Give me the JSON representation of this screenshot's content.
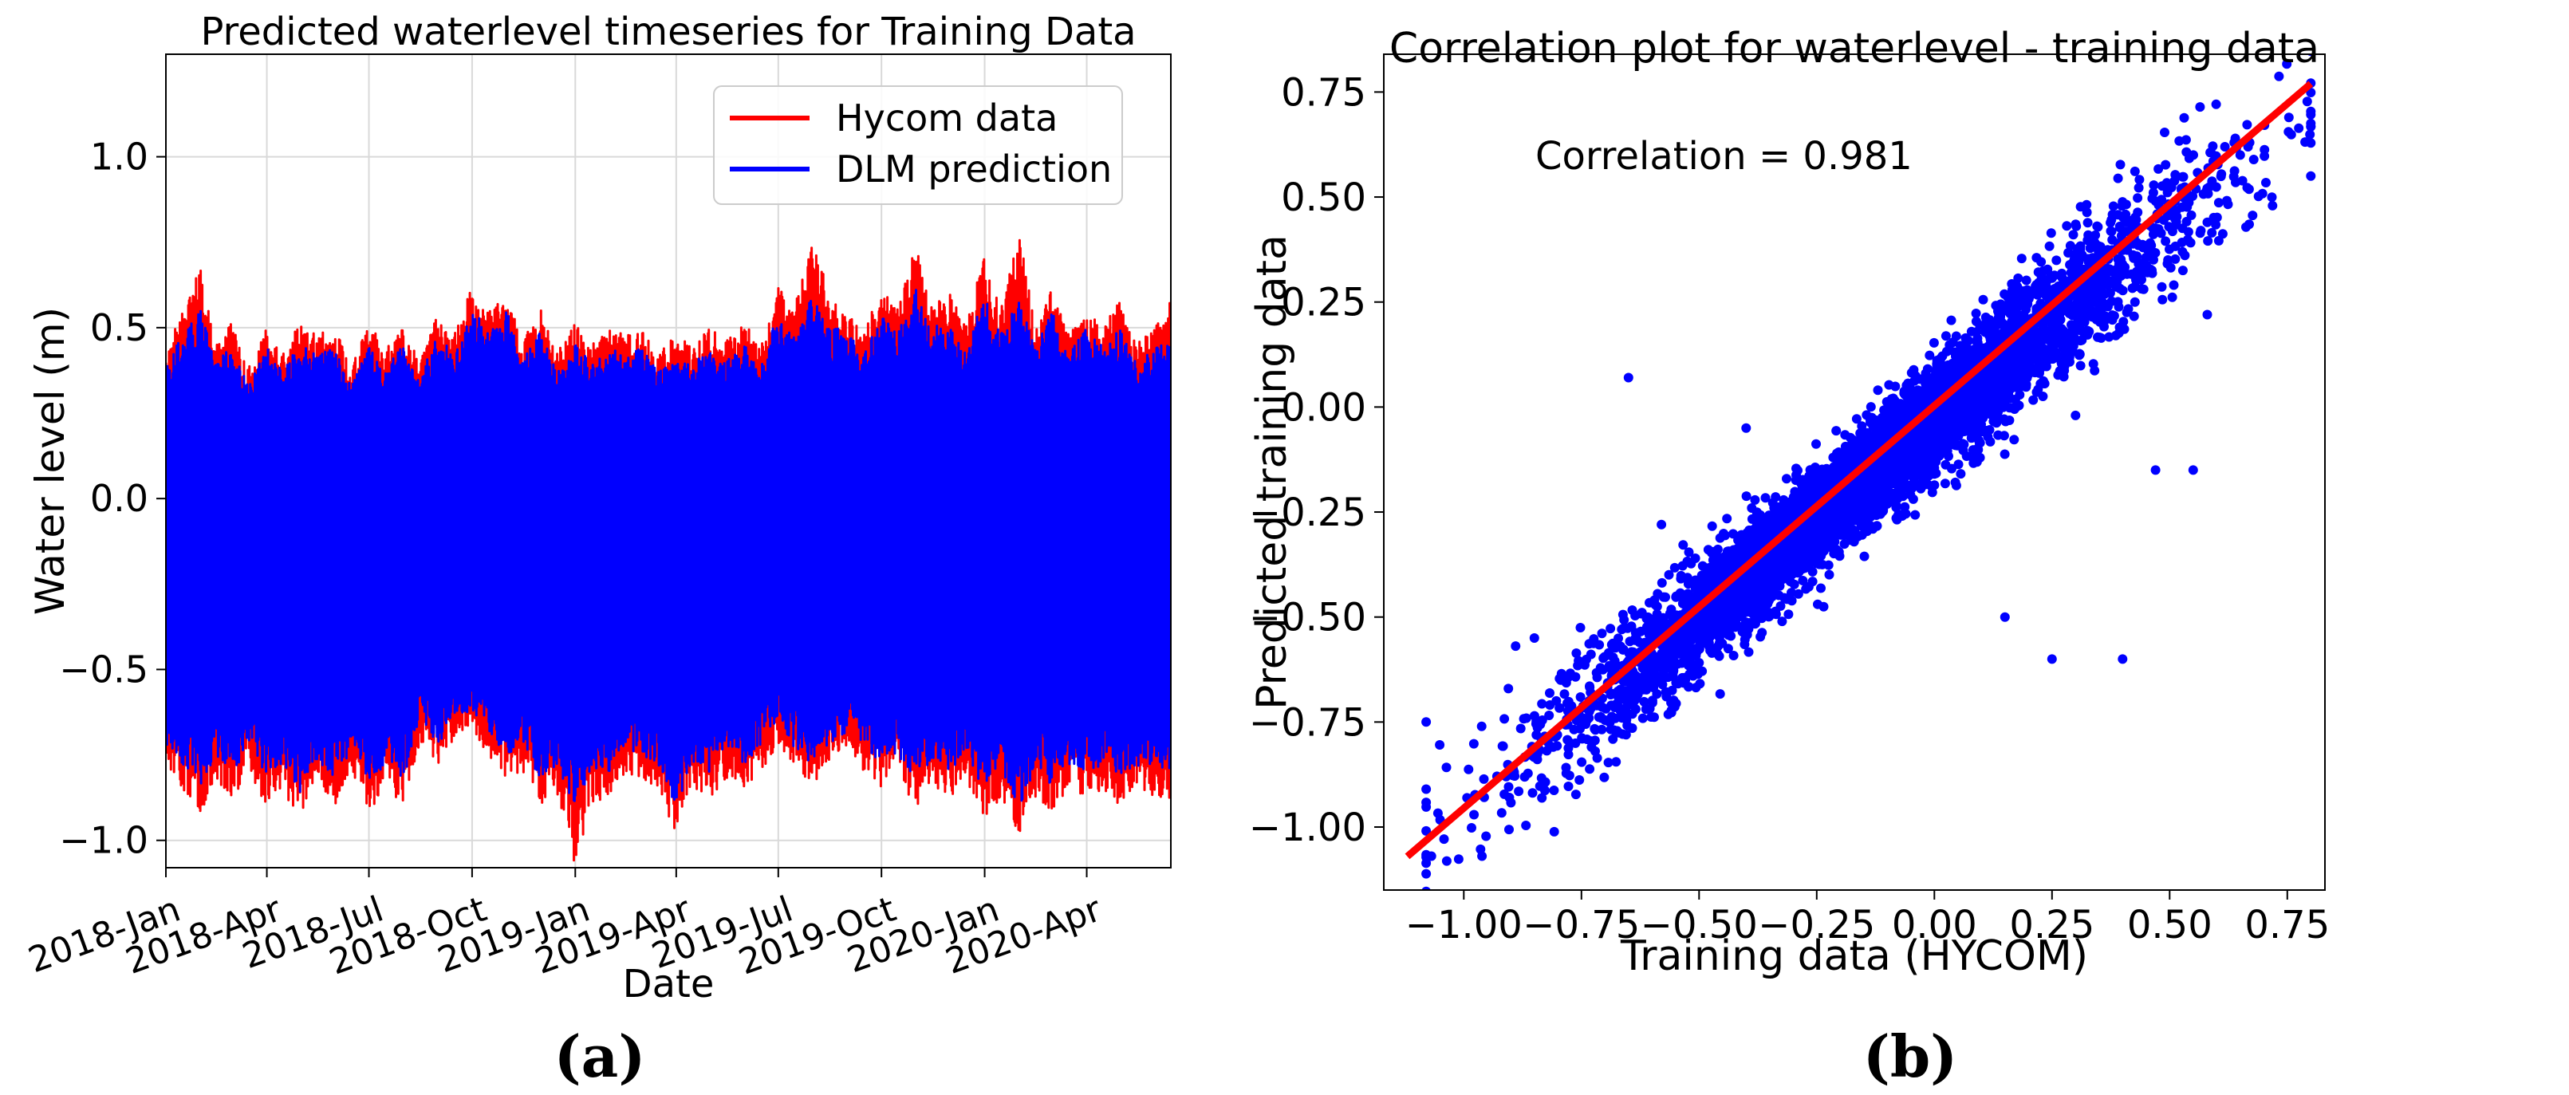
{
  "chart_data": [
    {
      "type": "line",
      "title": "Predicted waterlevel timeseries for Training Data",
      "xlabel": "Date",
      "ylabel": "Water level (m)",
      "x_range": [
        "2018-01-01",
        "2020-06-15"
      ],
      "ylim": [
        -1.08,
        1.3
      ],
      "x_ticks": [
        "2018-Jan",
        "2018-Apr",
        "2018-Jul",
        "2018-Oct",
        "2019-Jan",
        "2019-Apr",
        "2019-Jul",
        "2019-Oct",
        "2020-Jan",
        "2020-Apr"
      ],
      "x_tick_dates": [
        "2018-01-01",
        "2018-04-01",
        "2018-07-01",
        "2018-10-01",
        "2019-01-01",
        "2019-04-01",
        "2019-07-01",
        "2019-10-01",
        "2020-01-01",
        "2020-04-01"
      ],
      "y_ticks": [
        1.0,
        0.5,
        0.0,
        -0.5,
        -1.0
      ],
      "y_tick_labels": [
        "1.0",
        "0.5",
        "0.0",
        "−0.5",
        "−1.0"
      ],
      "grid": true,
      "legend_position": "top-right",
      "panel_label": "(a)",
      "series": [
        {
          "name": "Hycom data",
          "color": "#ff0000",
          "upper_envelope": {
            "x": [
              "2018-01-01",
              "2018-01-15",
              "2018-02-01",
              "2018-02-15",
              "2018-03-01",
              "2018-03-15",
              "2018-04-01",
              "2018-04-15",
              "2018-05-01",
              "2018-05-15",
              "2018-06-01",
              "2018-06-15",
              "2018-07-01",
              "2018-07-15",
              "2018-08-01",
              "2018-08-15",
              "2018-09-01",
              "2018-09-15",
              "2018-10-01",
              "2018-10-15",
              "2018-11-01",
              "2018-11-15",
              "2018-12-01",
              "2018-12-15",
              "2019-01-01",
              "2019-01-15",
              "2019-02-01",
              "2019-02-15",
              "2019-03-01",
              "2019-03-15",
              "2019-04-01",
              "2019-04-15",
              "2019-05-01",
              "2019-05-15",
              "2019-06-01",
              "2019-06-15",
              "2019-07-01",
              "2019-07-15",
              "2019-08-01",
              "2019-08-15",
              "2019-09-01",
              "2019-09-15",
              "2019-10-01",
              "2019-10-15",
              "2019-11-01",
              "2019-11-15",
              "2019-12-01",
              "2019-12-15",
              "2020-01-01",
              "2020-01-15",
              "2020-02-01",
              "2020-02-15",
              "2020-03-01",
              "2020-03-15",
              "2020-04-01",
              "2020-04-15",
              "2020-05-01",
              "2020-05-15",
              "2020-06-01",
              "2020-06-15"
            ],
            "y": [
              0.42,
              0.55,
              0.68,
              0.45,
              0.52,
              0.38,
              0.5,
              0.42,
              0.52,
              0.48,
              0.5,
              0.38,
              0.52,
              0.44,
              0.5,
              0.4,
              0.55,
              0.48,
              0.62,
              0.55,
              0.6,
              0.45,
              0.58,
              0.42,
              0.52,
              0.45,
              0.5,
              0.48,
              0.5,
              0.42,
              0.48,
              0.45,
              0.5,
              0.46,
              0.52,
              0.44,
              0.62,
              0.55,
              0.8,
              0.58,
              0.55,
              0.48,
              0.62,
              0.55,
              0.75,
              0.58,
              0.6,
              0.5,
              0.72,
              0.55,
              0.78,
              0.5,
              0.62,
              0.48,
              0.55,
              0.5,
              0.58,
              0.45,
              0.5,
              0.6
            ]
          },
          "lower_envelope": {
            "x": [
              "2018-01-01",
              "2018-01-15",
              "2018-02-01",
              "2018-02-15",
              "2018-03-01",
              "2018-03-15",
              "2018-04-01",
              "2018-04-15",
              "2018-05-01",
              "2018-05-15",
              "2018-06-01",
              "2018-06-15",
              "2018-07-01",
              "2018-07-15",
              "2018-08-01",
              "2018-08-15",
              "2018-09-01",
              "2018-09-15",
              "2018-10-01",
              "2018-10-15",
              "2018-11-01",
              "2018-11-15",
              "2018-12-01",
              "2018-12-15",
              "2019-01-01",
              "2019-01-15",
              "2019-02-01",
              "2019-02-15",
              "2019-03-01",
              "2019-03-15",
              "2019-04-01",
              "2019-04-15",
              "2019-05-01",
              "2019-05-15",
              "2019-06-01",
              "2019-06-15",
              "2019-07-01",
              "2019-07-15",
              "2019-08-01",
              "2019-08-15",
              "2019-09-01",
              "2019-09-15",
              "2019-10-01",
              "2019-10-15",
              "2019-11-01",
              "2019-11-15",
              "2019-12-01",
              "2019-12-15",
              "2020-01-01",
              "2020-01-15",
              "2020-02-01",
              "2020-02-15",
              "2020-03-01",
              "2020-03-15",
              "2020-04-01",
              "2020-04-15",
              "2020-05-01",
              "2020-05-15",
              "2020-06-01",
              "2020-06-15"
            ],
            "y": [
              -0.78,
              -0.85,
              -0.93,
              -0.82,
              -0.88,
              -0.8,
              -0.9,
              -0.85,
              -0.95,
              -0.82,
              -0.9,
              -0.8,
              -0.92,
              -0.85,
              -0.9,
              -0.72,
              -0.78,
              -0.7,
              -0.68,
              -0.75,
              -0.82,
              -0.8,
              -0.9,
              -0.85,
              -1.08,
              -0.9,
              -0.88,
              -0.8,
              -0.82,
              -0.85,
              -0.98,
              -0.85,
              -0.88,
              -0.82,
              -0.85,
              -0.8,
              -0.72,
              -0.8,
              -0.85,
              -0.78,
              -0.75,
              -0.8,
              -0.85,
              -0.82,
              -0.9,
              -0.85,
              -0.88,
              -0.82,
              -0.95,
              -0.88,
              -0.98,
              -0.88,
              -0.92,
              -0.85,
              -0.88,
              -0.85,
              -0.9,
              -0.85,
              -0.88,
              -0.88
            ]
          }
        },
        {
          "name": "DLM prediction",
          "color": "#0000ff",
          "upper_envelope": {
            "x": [
              "2018-01-01",
              "2018-01-15",
              "2018-02-01",
              "2018-02-15",
              "2018-03-01",
              "2018-03-15",
              "2018-04-01",
              "2018-04-15",
              "2018-05-01",
              "2018-05-15",
              "2018-06-01",
              "2018-06-15",
              "2018-07-01",
              "2018-07-15",
              "2018-08-01",
              "2018-08-15",
              "2018-09-01",
              "2018-09-15",
              "2018-10-01",
              "2018-10-15",
              "2018-11-01",
              "2018-11-15",
              "2018-12-01",
              "2018-12-15",
              "2019-01-01",
              "2019-01-15",
              "2019-02-01",
              "2019-02-15",
              "2019-03-01",
              "2019-03-15",
              "2019-04-01",
              "2019-04-15",
              "2019-05-01",
              "2019-05-15",
              "2019-06-01",
              "2019-06-15",
              "2019-07-01",
              "2019-07-15",
              "2019-08-01",
              "2019-08-15",
              "2019-09-01",
              "2019-09-15",
              "2019-10-01",
              "2019-10-15",
              "2019-11-01",
              "2019-11-15",
              "2019-12-01",
              "2019-12-15",
              "2020-01-01",
              "2020-01-15",
              "2020-02-01",
              "2020-02-15",
              "2020-03-01",
              "2020-03-15",
              "2020-04-01",
              "2020-04-15",
              "2020-05-01",
              "2020-05-15",
              "2020-06-01",
              "2020-06-15"
            ],
            "y": [
              0.38,
              0.48,
              0.55,
              0.4,
              0.45,
              0.33,
              0.44,
              0.38,
              0.45,
              0.42,
              0.44,
              0.33,
              0.45,
              0.38,
              0.45,
              0.36,
              0.48,
              0.42,
              0.55,
              0.5,
              0.55,
              0.4,
              0.5,
              0.37,
              0.45,
              0.4,
              0.44,
              0.42,
              0.45,
              0.37,
              0.42,
              0.4,
              0.44,
              0.4,
              0.46,
              0.38,
              0.55,
              0.48,
              0.6,
              0.5,
              0.5,
              0.42,
              0.55,
              0.48,
              0.62,
              0.5,
              0.52,
              0.44,
              0.6,
              0.48,
              0.58,
              0.44,
              0.55,
              0.42,
              0.5,
              0.45,
              0.5,
              0.4,
              0.44,
              0.48
            ]
          },
          "lower_envelope": {
            "x": [
              "2018-01-01",
              "2018-01-15",
              "2018-02-01",
              "2018-02-15",
              "2018-03-01",
              "2018-03-15",
              "2018-04-01",
              "2018-04-15",
              "2018-05-01",
              "2018-05-15",
              "2018-06-01",
              "2018-06-15",
              "2018-07-01",
              "2018-07-15",
              "2018-08-01",
              "2018-08-15",
              "2018-09-01",
              "2018-09-15",
              "2018-10-01",
              "2018-10-15",
              "2018-11-01",
              "2018-11-15",
              "2018-12-01",
              "2018-12-15",
              "2019-01-01",
              "2019-01-15",
              "2019-02-01",
              "2019-02-15",
              "2019-03-01",
              "2019-03-15",
              "2019-04-01",
              "2019-04-15",
              "2019-05-01",
              "2019-05-15",
              "2019-06-01",
              "2019-06-15",
              "2019-07-01",
              "2019-07-15",
              "2019-08-01",
              "2019-08-15",
              "2019-09-01",
              "2019-09-15",
              "2019-10-01",
              "2019-10-15",
              "2019-11-01",
              "2019-11-15",
              "2019-12-01",
              "2019-12-15",
              "2020-01-01",
              "2020-01-15",
              "2020-02-01",
              "2020-02-15",
              "2020-03-01",
              "2020-03-15",
              "2020-04-01",
              "2020-04-15",
              "2020-05-01",
              "2020-05-15",
              "2020-06-01",
              "2020-06-15"
            ],
            "y": [
              -0.72,
              -0.78,
              -0.85,
              -0.75,
              -0.8,
              -0.74,
              -0.82,
              -0.78,
              -0.86,
              -0.76,
              -0.82,
              -0.74,
              -0.84,
              -0.78,
              -0.82,
              -0.66,
              -0.72,
              -0.64,
              -0.62,
              -0.68,
              -0.75,
              -0.73,
              -0.82,
              -0.78,
              -0.9,
              -0.82,
              -0.8,
              -0.73,
              -0.75,
              -0.78,
              -0.9,
              -0.78,
              -0.8,
              -0.75,
              -0.78,
              -0.73,
              -0.66,
              -0.73,
              -0.78,
              -0.72,
              -0.68,
              -0.73,
              -0.78,
              -0.75,
              -0.82,
              -0.78,
              -0.8,
              -0.75,
              -0.86,
              -0.8,
              -0.9,
              -0.8,
              -0.84,
              -0.78,
              -0.8,
              -0.78,
              -0.82,
              -0.78,
              -0.8,
              -0.8
            ]
          }
        }
      ]
    },
    {
      "type": "scatter",
      "title": "Correlation plot for waterlevel - training data",
      "xlabel": "Training data (HYCOM)",
      "ylabel": "Predicted training data",
      "xlim": [
        -1.17,
        0.83
      ],
      "ylim": [
        -1.15,
        0.84
      ],
      "x_ticks": [
        -1.0,
        -0.75,
        -0.5,
        -0.25,
        0.0,
        0.25,
        0.5,
        0.75
      ],
      "x_tick_labels": [
        "−1.00",
        "−0.75",
        "−0.50",
        "−0.25",
        "0.00",
        "0.25",
        "0.50",
        "0.75"
      ],
      "y_ticks": [
        0.75,
        0.5,
        0.25,
        0.0,
        -0.25,
        -0.5,
        -0.75,
        -1.0
      ],
      "y_tick_labels": [
        "0.75",
        "0.50",
        "0.25",
        "0.00",
        "−0.25",
        "−0.50",
        "−0.75",
        "−1.00"
      ],
      "grid": false,
      "annotation": "Correlation = 0.981",
      "panel_label": "(b)",
      "fit_line": {
        "color": "#ff0000",
        "x": [
          -1.12,
          0.8
        ],
        "y": [
          -1.07,
          0.77
        ]
      },
      "points_color": "#0000ff",
      "point_cloud": {
        "x_range": [
          -1.08,
          0.8
        ],
        "fit_slope": 0.93,
        "fit_intercept": -0.03,
        "spread_sd": 0.07,
        "outliers": [
          {
            "x": -0.65,
            "y": 0.07
          },
          {
            "x": -0.4,
            "y": -0.05
          },
          {
            "x": -0.27,
            "y": -0.23
          },
          {
            "x": -0.12,
            "y": 0.04
          },
          {
            "x": 0.3,
            "y": -0.02
          },
          {
            "x": 0.47,
            "y": -0.15
          },
          {
            "x": 0.15,
            "y": -0.5
          },
          {
            "x": 0.25,
            "y": -0.6
          },
          {
            "x": 0.55,
            "y": -0.15
          },
          {
            "x": 0.4,
            "y": -0.6
          },
          {
            "x": -1.08,
            "y": -0.75
          },
          {
            "x": -0.98,
            "y": -0.93
          },
          {
            "x": 0.8,
            "y": 0.55
          },
          {
            "x": 0.65,
            "y": 0.6
          },
          {
            "x": -0.85,
            "y": -0.55
          },
          {
            "x": -0.58,
            "y": -0.28
          },
          {
            "x": 0.58,
            "y": 0.22
          }
        ]
      }
    }
  ]
}
